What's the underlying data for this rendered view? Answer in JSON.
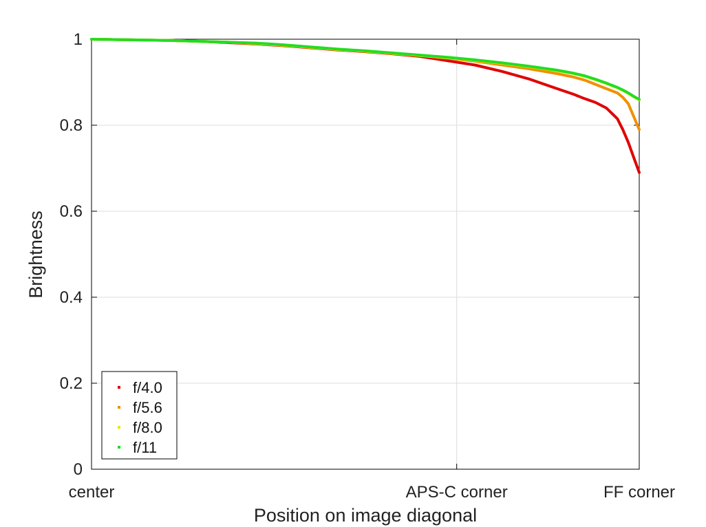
{
  "chart_data": {
    "type": "scatter",
    "title": "",
    "xlabel": "Position on image diagonal",
    "ylabel": "Brightness",
    "xlim": [
      0,
      1
    ],
    "ylim": [
      0,
      1
    ],
    "grid": true,
    "legend_position": "bottom-left",
    "x_ticks": [
      {
        "value": 0,
        "label": "center"
      },
      {
        "value": 0.6667,
        "label": "APS-C corner"
      },
      {
        "value": 1,
        "label": "FF corner"
      }
    ],
    "y_ticks": [
      {
        "value": 0,
        "label": "0"
      },
      {
        "value": 0.2,
        "label": "0.2"
      },
      {
        "value": 0.4,
        "label": "0.4"
      },
      {
        "value": 0.6,
        "label": "0.6"
      },
      {
        "value": 0.8,
        "label": "0.8"
      },
      {
        "value": 1,
        "label": "1"
      }
    ],
    "x": [
      0,
      0.05,
      0.1,
      0.15,
      0.2,
      0.25,
      0.3,
      0.35,
      0.4,
      0.45,
      0.5,
      0.55,
      0.6,
      0.65,
      0.7,
      0.75,
      0.8,
      0.85,
      0.88,
      0.9,
      0.92,
      0.94,
      0.96,
      0.97,
      0.98,
      0.99,
      1.0
    ],
    "series": [
      {
        "name": "f/4.0",
        "color": "#e00000",
        "values": [
          1.0,
          0.999,
          0.998,
          0.997,
          0.995,
          0.992,
          0.989,
          0.985,
          0.98,
          0.975,
          0.971,
          0.966,
          0.96,
          0.95,
          0.94,
          0.925,
          0.907,
          0.885,
          0.872,
          0.862,
          0.853,
          0.84,
          0.815,
          0.79,
          0.76,
          0.725,
          0.69
        ]
      },
      {
        "name": "f/5.6",
        "color": "#f09000",
        "values": [
          1.0,
          0.999,
          0.998,
          0.997,
          0.995,
          0.993,
          0.99,
          0.986,
          0.981,
          0.976,
          0.972,
          0.967,
          0.962,
          0.956,
          0.949,
          0.94,
          0.931,
          0.92,
          0.912,
          0.905,
          0.895,
          0.885,
          0.875,
          0.865,
          0.85,
          0.82,
          0.79
        ]
      },
      {
        "name": "f/8.0",
        "color": "#e8e800",
        "values": [
          1.0,
          0.999,
          0.998,
          0.997,
          0.995,
          0.993,
          0.99,
          0.986,
          0.981,
          0.976,
          0.972,
          0.967,
          0.962,
          0.957,
          0.951,
          0.944,
          0.936,
          0.927,
          0.92,
          0.914,
          0.906,
          0.897,
          0.887,
          0.881,
          0.874,
          0.866,
          0.859
        ]
      },
      {
        "name": "f/11",
        "color": "#22dd22",
        "values": [
          1.0,
          0.999,
          0.998,
          0.997,
          0.995,
          0.993,
          0.991,
          0.987,
          0.982,
          0.977,
          0.973,
          0.968,
          0.963,
          0.958,
          0.952,
          0.945,
          0.937,
          0.928,
          0.921,
          0.915,
          0.907,
          0.898,
          0.888,
          0.882,
          0.875,
          0.867,
          0.86
        ]
      }
    ]
  }
}
